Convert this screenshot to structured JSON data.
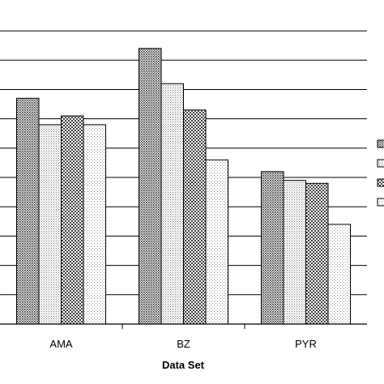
{
  "chart_data": {
    "type": "bar",
    "categories": [
      "AMA",
      "BZ",
      "PYR"
    ],
    "series": [
      {
        "pattern": "dense-dots",
        "values": [
          0.77,
          0.94,
          0.52
        ]
      },
      {
        "pattern": "fine-dots",
        "values": [
          0.68,
          0.82,
          0.49
        ]
      },
      {
        "pattern": "checker",
        "values": [
          0.71,
          0.73,
          0.48
        ]
      },
      {
        "pattern": "sparse-dots",
        "values": [
          0.68,
          0.56,
          0.34
        ]
      }
    ],
    "xlabel": "Data Set",
    "ylim": [
      0,
      1.05
    ],
    "grid": true,
    "legend_position": "right"
  }
}
